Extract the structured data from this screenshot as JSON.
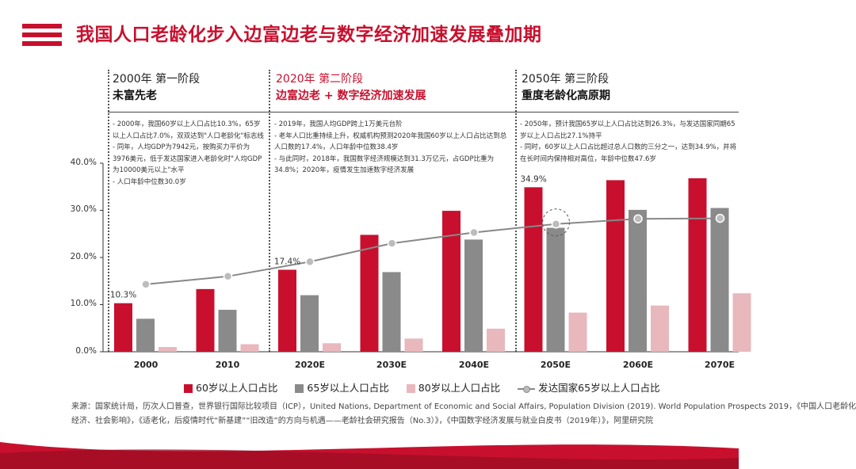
{
  "title": "我国人口老龄化步入边富边老与数字经济加速发展叠加期",
  "stages": [
    {
      "line1": "2000年 第一阶段",
      "line2": "未富先老",
      "notes": [
        "- 2000年，我国60岁以上人口占比10.3%，65岁以上人口占比7.0%，双双达到\"人口老龄化\"标志线",
        "- 同年，人均GDP为7942元，按购买力平价为3976美元，低于发达国家进入老龄化时\"人均GDP为10000美元以上\"水平",
        "- 人口年龄中位数30.0岁"
      ]
    },
    {
      "line1": "2020年 第二阶段",
      "line2": "边富边老 + 数字经济加速发展",
      "notes": [
        "- 2019年，我国人均GDP跨上1万美元台阶",
        "- 老年人口比重持续上升，权威机构预测2020年我国60岁以上人口占比达到总人口数的17.4%，人口年龄中位数38.4岁",
        "- 与此同时，2018年，我国数字经济规模达到31.3万亿元，占GDP比重为34.8%；2020年，疫情发生加速数字经济发展"
      ]
    },
    {
      "line1": "2050年 第三阶段",
      "line2": "重度老龄化高原期",
      "notes": [
        "- 2050年，预计我国65岁以上人口占比达到26.3%，与发达国家同期65岁以上人口占比27.1%持平",
        "- 同时，60岁以上人口占比超过总人口数的三分之一，达到34.9%，并将在长时间内保持相对高位，年龄中位数47.6岁"
      ]
    }
  ],
  "chart_data": {
    "type": "bar",
    "categories": [
      "2000",
      "2010",
      "2020E",
      "2030E",
      "2040E",
      "2050E",
      "2060E",
      "2070E"
    ],
    "yticks": [
      "0.0%",
      "10.0%",
      "20.0%",
      "30.0%",
      "40.0%"
    ],
    "ylim": [
      0,
      40
    ],
    "series": [
      {
        "name": "60岁以上人口占比",
        "kind": "bar",
        "color": "#c8102e",
        "values": [
          10.3,
          13.3,
          17.4,
          24.8,
          29.9,
          34.9,
          36.4,
          36.8
        ]
      },
      {
        "name": "65岁以上人口占比",
        "kind": "bar",
        "color": "#8a8a8a",
        "values": [
          7.0,
          8.9,
          12.0,
          16.9,
          23.8,
          26.3,
          30.1,
          30.5
        ]
      },
      {
        "name": "80岁以上人口占比",
        "kind": "bar",
        "color": "#e8b8bc",
        "values": [
          1.0,
          1.6,
          1.8,
          2.8,
          4.9,
          8.3,
          9.8,
          12.4
        ]
      },
      {
        "name": "发达国家65岁以上人口占比",
        "kind": "line",
        "color": "#888888",
        "values": [
          14.3,
          16.0,
          19.1,
          23.0,
          25.3,
          27.1,
          28.2,
          28.3
        ]
      }
    ],
    "data_labels": [
      {
        "category": "2000",
        "series": 0,
        "text": "10.3%"
      },
      {
        "category": "2020E",
        "series": 0,
        "text": "17.4%"
      },
      {
        "category": "2050E",
        "series": 0,
        "text": "34.9%"
      }
    ]
  },
  "source_lines": [
    "来源：国家统计局，历次人口普查，世界银行国际比较项目（ICP），United Nations, Department of Economic and Social Affairs, Population Division (2019). World Population Prospects 2019，《中国人口老龄化",
    "经济、社会影响》，《适老化，后疫情时代“新基建”“旧改造”的方向与机遇——老龄社会研究报告（No.3）》，《中国数字经济发展与就业白皮书（2019年）》，阿里研究院"
  ]
}
